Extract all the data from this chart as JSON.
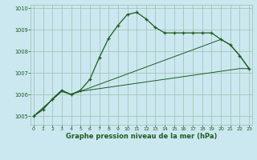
{
  "line1": {
    "x": [
      0,
      1,
      2,
      3,
      4,
      5,
      6,
      7,
      8,
      9,
      10,
      11,
      12,
      13,
      14,
      15,
      16,
      17,
      18,
      19,
      20,
      21,
      22,
      23
    ],
    "y": [
      1005.0,
      1005.3,
      1005.8,
      1006.2,
      1006.0,
      1006.2,
      1006.7,
      1007.7,
      1008.6,
      1009.2,
      1009.7,
      1009.8,
      1009.5,
      1009.1,
      1008.85,
      1008.85,
      1008.85,
      1008.85,
      1008.85,
      1008.85,
      1008.55,
      1008.3,
      1007.8,
      1007.2
    ]
  },
  "line2": {
    "x": [
      0,
      3,
      4,
      5,
      22,
      23
    ],
    "y": [
      1005.0,
      1006.15,
      1006.0,
      1006.15,
      1007.2,
      1007.2
    ]
  },
  "line3": {
    "x": [
      0,
      3,
      4,
      5,
      20,
      21,
      22,
      23
    ],
    "y": [
      1005.0,
      1006.15,
      1006.0,
      1006.15,
      1008.55,
      1008.3,
      1007.8,
      1007.2
    ]
  },
  "xlim": [
    -0.3,
    23.3
  ],
  "ylim": [
    1004.6,
    1010.15
  ],
  "yticks": [
    1005,
    1006,
    1007,
    1008,
    1009,
    1010
  ],
  "xticks": [
    0,
    1,
    2,
    3,
    4,
    5,
    6,
    7,
    8,
    9,
    10,
    11,
    12,
    13,
    14,
    15,
    16,
    17,
    18,
    19,
    20,
    21,
    22,
    23
  ],
  "xlabel": "Graphe pression niveau de la mer (hPa)",
  "bg_color": "#cbe8f0",
  "grid_color": "#9dbfaa",
  "line_color": "#1e5c1e"
}
